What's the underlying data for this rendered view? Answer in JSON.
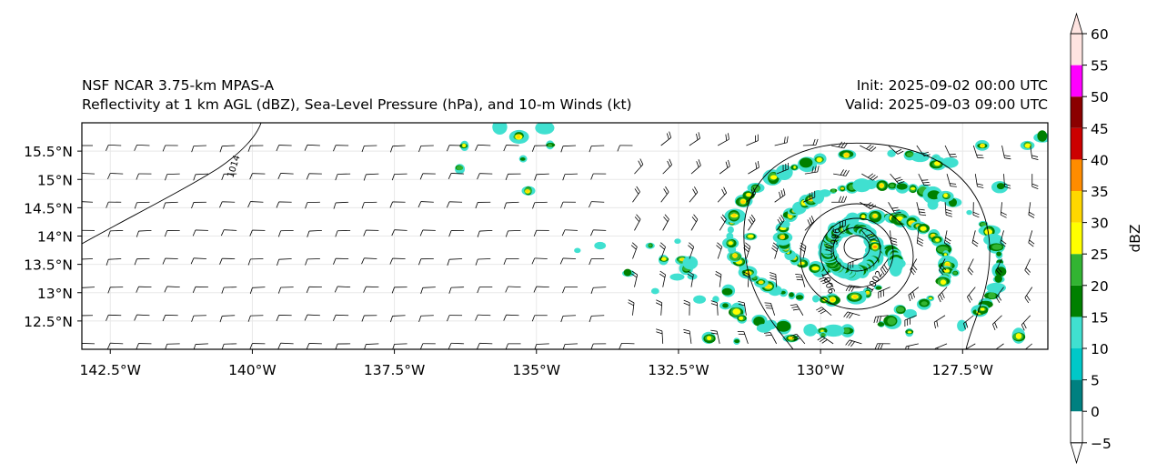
{
  "header": {
    "model": "NSF NCAR 3.75-km MPAS-A",
    "fields": "Reflectivity at 1 km AGL (dBZ), Sea-Level Pressure (hPa), and 10-m Winds (kt)",
    "init": "Init: 2025-09-02 00:00 UTC",
    "valid": "Valid: 2025-09-03 09:00 UTC"
  },
  "map": {
    "lon_range": [
      -143.0,
      -126.0
    ],
    "lat_range": [
      12.0,
      16.0
    ],
    "lon_ticks": [
      {
        "value": -142.5,
        "label": "142.5°W"
      },
      {
        "value": -140.0,
        "label": "140°W"
      },
      {
        "value": -137.5,
        "label": "137.5°W"
      },
      {
        "value": -135.0,
        "label": "135°W"
      },
      {
        "value": -132.5,
        "label": "132.5°W"
      },
      {
        "value": -130.0,
        "label": "130°W"
      },
      {
        "value": -127.5,
        "label": "127.5°W"
      }
    ],
    "lat_ticks": [
      {
        "value": 15.5,
        "label": "15.5°N"
      },
      {
        "value": 15.0,
        "label": "15°N"
      },
      {
        "value": 14.5,
        "label": "14.5°N"
      },
      {
        "value": 14.0,
        "label": "14°N"
      },
      {
        "value": 13.5,
        "label": "13.5°N"
      },
      {
        "value": 13.0,
        "label": "13°N"
      },
      {
        "value": 12.5,
        "label": "12.5°N"
      }
    ],
    "contour_labels": [
      "1014",
      "1006",
      "1002",
      "996"
    ],
    "storm_center": {
      "lon": -129.45,
      "lat": 13.75
    }
  },
  "colorbar": {
    "label": "dBZ",
    "ticks": [
      "60",
      "55",
      "50",
      "45",
      "40",
      "35",
      "30",
      "25",
      "20",
      "15",
      "10",
      "5",
      "0",
      "−5"
    ],
    "levels": [
      -5,
      0,
      5,
      10,
      15,
      20,
      25,
      30,
      35,
      40,
      45,
      50,
      55,
      60
    ],
    "colors": [
      "#ffffff",
      "#008080",
      "#00c8c8",
      "#40e0d0",
      "#008000",
      "#32b432",
      "#ffff00",
      "#ffd700",
      "#ff8c00",
      "#cc0000",
      "#8b0000",
      "#ff00ff",
      "#ffe4e1"
    ]
  }
}
